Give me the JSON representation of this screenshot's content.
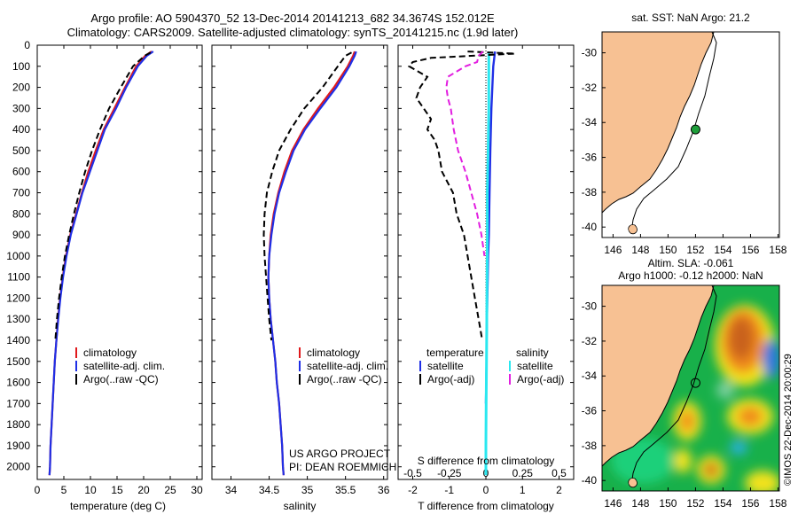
{
  "header": {
    "title_line1": "Argo profile: AO 5904370_52 13-Dec-2014 20141213_682 34.3674S 152.012E",
    "title_line2": "Climatology: CARS2009. Satellite-adjusted climatology: synTS_20141215.nc (1.9d later)"
  },
  "credit": "©IMOS 22-Dec-2014 20:00:29",
  "colors": {
    "red": "#e0191c",
    "blue": "#1f2fe6",
    "black": "#000000",
    "magenta": "#e21ee0",
    "cyan": "#2ae8f0",
    "land": "#f7c193"
  },
  "chart_data": [
    {
      "type": "line",
      "xlabel": "temperature (deg C)",
      "xticks": [
        "0",
        "5",
        "10",
        "15",
        "20",
        "25",
        "30"
      ],
      "xlim": [
        0,
        31
      ],
      "ylim": [
        0,
        2060
      ],
      "yticks": [
        "0",
        "100",
        "200",
        "300",
        "400",
        "500",
        "600",
        "700",
        "800",
        "900",
        "1000",
        "1100",
        "1200",
        "1300",
        "1400",
        "1500",
        "1600",
        "1700",
        "1800",
        "1900",
        "2000"
      ],
      "legend": [
        "climatology",
        "satellite-adj. clim.",
        "Argo(..raw -QC)"
      ],
      "series": [
        {
          "name": "climatology",
          "depth": [
            30,
            50,
            100,
            200,
            300,
            400,
            500,
            600,
            700,
            800,
            900,
            1000,
            1100,
            1200,
            1300,
            1400,
            1500,
            1600,
            1700,
            1800,
            1900,
            2000,
            2040
          ],
          "values": [
            21.5,
            20.3,
            18.6,
            16.5,
            14.5,
            12.5,
            11.0,
            9.6,
            8.4,
            7.3,
            6.2,
            5.4,
            4.8,
            4.3,
            3.9,
            3.6,
            3.3,
            3.1,
            2.9,
            2.7,
            2.5,
            2.4,
            2.3
          ]
        },
        {
          "name": "satellite-adj. clim.",
          "depth": [
            30,
            50,
            100,
            200,
            300,
            400,
            500,
            600,
            700,
            800,
            900,
            1000,
            1100,
            1200,
            1300,
            1400,
            1500,
            1600,
            1700,
            1800,
            1900,
            2000,
            2040
          ],
          "values": [
            21.8,
            20.6,
            18.9,
            16.7,
            14.8,
            12.7,
            11.3,
            9.9,
            8.5,
            7.4,
            6.3,
            5.5,
            4.85,
            4.35,
            3.95,
            3.6,
            3.3,
            3.1,
            2.9,
            2.7,
            2.5,
            2.4,
            2.3
          ]
        },
        {
          "name": "Argo(..raw -QC)",
          "depth": [
            35,
            50,
            100,
            200,
            300,
            400,
            500,
            600,
            700,
            800,
            900,
            1000,
            1100,
            1200,
            1300,
            1400
          ],
          "values": [
            21.3,
            20.2,
            18.0,
            15.7,
            13.5,
            11.8,
            10.3,
            9.0,
            7.9,
            6.9,
            6.0,
            5.2,
            4.6,
            4.1,
            3.7,
            3.4
          ]
        }
      ]
    },
    {
      "type": "line",
      "xlabel": "salinity",
      "xticks": [
        "34",
        "34.5",
        "35",
        "35.5",
        "36"
      ],
      "xlim": [
        33.75,
        36.05
      ],
      "ylim": [
        0,
        2060
      ],
      "legend": [
        "climatology",
        "satellite-adj. clim.",
        "Argo(..raw -QC)"
      ],
      "annotation": [
        "US ARGO PROJECT",
        "PI: DEAN ROEMMICH"
      ],
      "series": [
        {
          "name": "climatology",
          "depth": [
            30,
            50,
            100,
            200,
            300,
            400,
            500,
            600,
            700,
            800,
            900,
            1000,
            1100,
            1200,
            1300,
            1400,
            1500,
            1600,
            1700,
            1800,
            1900,
            2000,
            2040
          ],
          "values": [
            35.62,
            35.6,
            35.53,
            35.35,
            35.14,
            34.95,
            34.8,
            34.7,
            34.62,
            34.56,
            34.52,
            34.5,
            34.49,
            34.5,
            34.52,
            34.55,
            34.58,
            34.6,
            34.63,
            34.65,
            34.67,
            34.68,
            34.69
          ]
        },
        {
          "name": "satellite-adj. clim.",
          "depth": [
            30,
            50,
            100,
            200,
            300,
            400,
            500,
            600,
            700,
            800,
            900,
            1000,
            1100,
            1200,
            1300,
            1400,
            1500,
            1600,
            1700,
            1800,
            1900,
            2000,
            2040
          ],
          "values": [
            35.64,
            35.62,
            35.55,
            35.38,
            35.17,
            34.97,
            34.82,
            34.72,
            34.63,
            34.57,
            34.53,
            34.5,
            34.49,
            34.5,
            34.52,
            34.55,
            34.58,
            34.6,
            34.63,
            34.65,
            34.67,
            34.68,
            34.69
          ]
        },
        {
          "name": "Argo(..raw -QC)",
          "depth": [
            35,
            50,
            100,
            200,
            300,
            400,
            500,
            600,
            700,
            800,
            900,
            1000,
            1100,
            1200,
            1300,
            1400
          ],
          "values": [
            35.58,
            35.5,
            35.4,
            35.2,
            34.96,
            34.78,
            34.63,
            34.54,
            34.47,
            34.44,
            34.43,
            34.44,
            34.46,
            34.48,
            34.5,
            34.53
          ]
        }
      ]
    },
    {
      "type": "line",
      "xlabel": "T difference from climatology",
      "xticks": [
        "-2",
        "-1",
        "0",
        "1",
        "2"
      ],
      "xlim": [
        -2.4,
        2.4
      ],
      "top_label": "S difference from climatology",
      "top_ticks": [
        "-0.5",
        "-0.25",
        "0",
        "0.25",
        "0.5"
      ],
      "legend_temperature": [
        "temperature",
        "satellite",
        "Argo(-adj)"
      ],
      "legend_salinity": [
        "salinity",
        "satellite",
        "Argo(-adj)"
      ],
      "ylim": [
        0,
        2060
      ],
      "series": [
        {
          "name": "temperature satellite",
          "depth": [
            30,
            100,
            300,
            500,
            700,
            900,
            1000,
            1100,
            1200,
            1300,
            1400,
            1500,
            1600,
            1700
          ],
          "values": [
            0.25,
            0.2,
            0.15,
            0.12,
            0.1,
            0.08,
            0.06,
            0.05,
            0.04,
            0.03,
            0.02,
            0.02,
            0.01,
            0.0
          ]
        },
        {
          "name": "salinity satellite",
          "depth": [
            30,
            100,
            300,
            500,
            700,
            900,
            1100,
            1300,
            1500,
            1700,
            1900,
            2040
          ],
          "values": [
            0.02,
            0.02,
            0.02,
            0.015,
            0.01,
            0.01,
            0.008,
            0.006,
            0.004,
            0.002,
            0.0,
            0.0
          ]
        },
        {
          "name": "temperature Argo(-adj)",
          "depth": [
            30,
            40,
            60,
            80,
            100,
            150,
            200,
            250,
            300,
            350,
            400,
            450,
            500,
            600,
            700,
            800,
            900,
            1000,
            1100,
            1200,
            1300,
            1400
          ],
          "values": [
            -0.5,
            0.8,
            -1.5,
            -2.0,
            -2.1,
            -1.6,
            -1.8,
            -1.9,
            -1.7,
            -1.5,
            -1.6,
            -1.4,
            -1.3,
            -1.2,
            -0.9,
            -0.8,
            -0.6,
            -0.5,
            -0.4,
            -0.3,
            -0.2,
            -0.1
          ]
        },
        {
          "name": "salinity Argo(-adj)",
          "depth": [
            30,
            50,
            80,
            100,
            150,
            200,
            250,
            300,
            400,
            500,
            600,
            700,
            800,
            900,
            1000
          ],
          "values": [
            -0.02,
            -0.05,
            -0.06,
            -0.14,
            -0.26,
            -0.27,
            -0.26,
            -0.24,
            -0.22,
            -0.19,
            -0.14,
            -0.1,
            -0.06,
            -0.03,
            -0.01
          ]
        }
      ]
    }
  ],
  "map_sst": {
    "title": "sat. SST: NaN Argo: 21.2",
    "xticks": [
      "146",
      "148",
      "150",
      "152",
      "154",
      "156",
      "158"
    ],
    "yticks": [
      "-30",
      "-32",
      "-34",
      "-36",
      "-38",
      "-40"
    ],
    "marker": {
      "lon": 152.0,
      "lat": -34.4
    }
  },
  "map_sla": {
    "title1": "Altim. SLA: -0.061",
    "title2": "Argo h1000: -0.12 h2000: NaN",
    "xticks": [
      "146",
      "148",
      "150",
      "152",
      "154",
      "156",
      "158"
    ],
    "yticks": [
      "-30",
      "-32",
      "-34",
      "-36",
      "-38",
      "-40"
    ],
    "marker": {
      "lon": 152.0,
      "lat": -34.4
    }
  }
}
